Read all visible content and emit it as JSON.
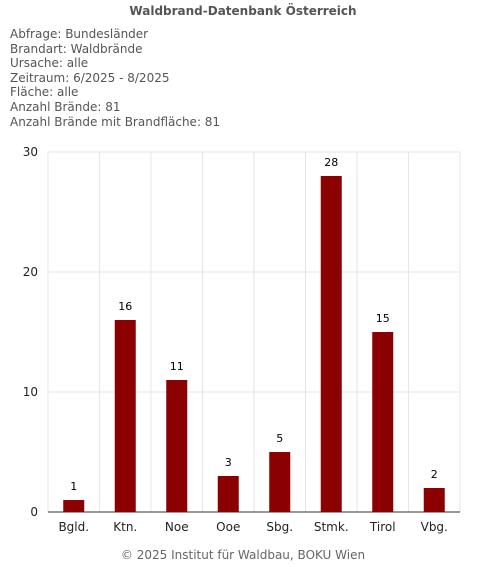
{
  "page": {
    "title": "Waldbrand-Datenbank Österreich",
    "footer": "© 2025 Institut für Waldbau, BOKU Wien"
  },
  "filters": [
    "Abfrage: Bundesländer",
    "Brandart: Waldbrände",
    "Ursache: alle",
    "Zeitraum: 6/2025 - 8/2025",
    "Fläche: alle",
    "Anzahl Brände: 81",
    "Anzahl Brände mit Brandfläche: 81"
  ],
  "chart_data": {
    "type": "bar",
    "title": "",
    "xlabel": "",
    "ylabel": "",
    "categories": [
      "Bgld.",
      "Ktn.",
      "Noe",
      "Ooe",
      "Sbg.",
      "Stmk.",
      "Tirol",
      "Vbg."
    ],
    "values": [
      1,
      16,
      11,
      3,
      5,
      28,
      15,
      2
    ],
    "ylim": [
      0,
      30
    ],
    "yticks": [
      0,
      10,
      20,
      30
    ],
    "grid": true,
    "data_labels": true,
    "bar_color": "#8b0000",
    "grid_color": "#e6e6e6"
  }
}
